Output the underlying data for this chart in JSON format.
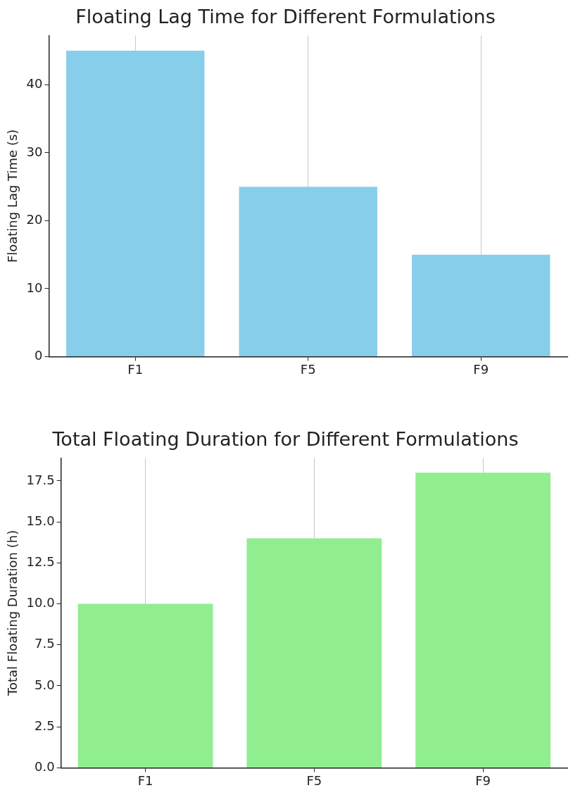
{
  "chart_data": [
    {
      "type": "bar",
      "title": "Floating Lag Time for Different Formulations",
      "ylabel": "Floating Lag Time (s)",
      "categories": [
        "F1",
        "F5",
        "F9"
      ],
      "values": [
        45,
        25,
        15
      ],
      "color": "#87ceeb",
      "ylim": [
        0,
        47.25
      ],
      "yticks": [
        0,
        10,
        20,
        30,
        40
      ],
      "grid": "x",
      "legend": false
    },
    {
      "type": "bar",
      "title": "Total Floating Duration for Different Formulations",
      "ylabel": "Total Floating Duration (h)",
      "categories": [
        "F1",
        "F5",
        "F9"
      ],
      "values": [
        10,
        14,
        18
      ],
      "color": "#90ee90",
      "ylim": [
        0,
        18.9
      ],
      "yticks": [
        {
          "value": 0,
          "label": "0.0"
        },
        {
          "value": 2.5,
          "label": "2.5"
        },
        {
          "value": 5,
          "label": "5.0"
        },
        {
          "value": 7.5,
          "label": "7.5"
        },
        {
          "value": 10,
          "label": "10.0"
        },
        {
          "value": 12.5,
          "label": "12.5"
        },
        {
          "value": 15,
          "label": "15.0"
        },
        {
          "value": 17.5,
          "label": "17.5"
        }
      ],
      "grid": "x",
      "legend": false
    }
  ]
}
